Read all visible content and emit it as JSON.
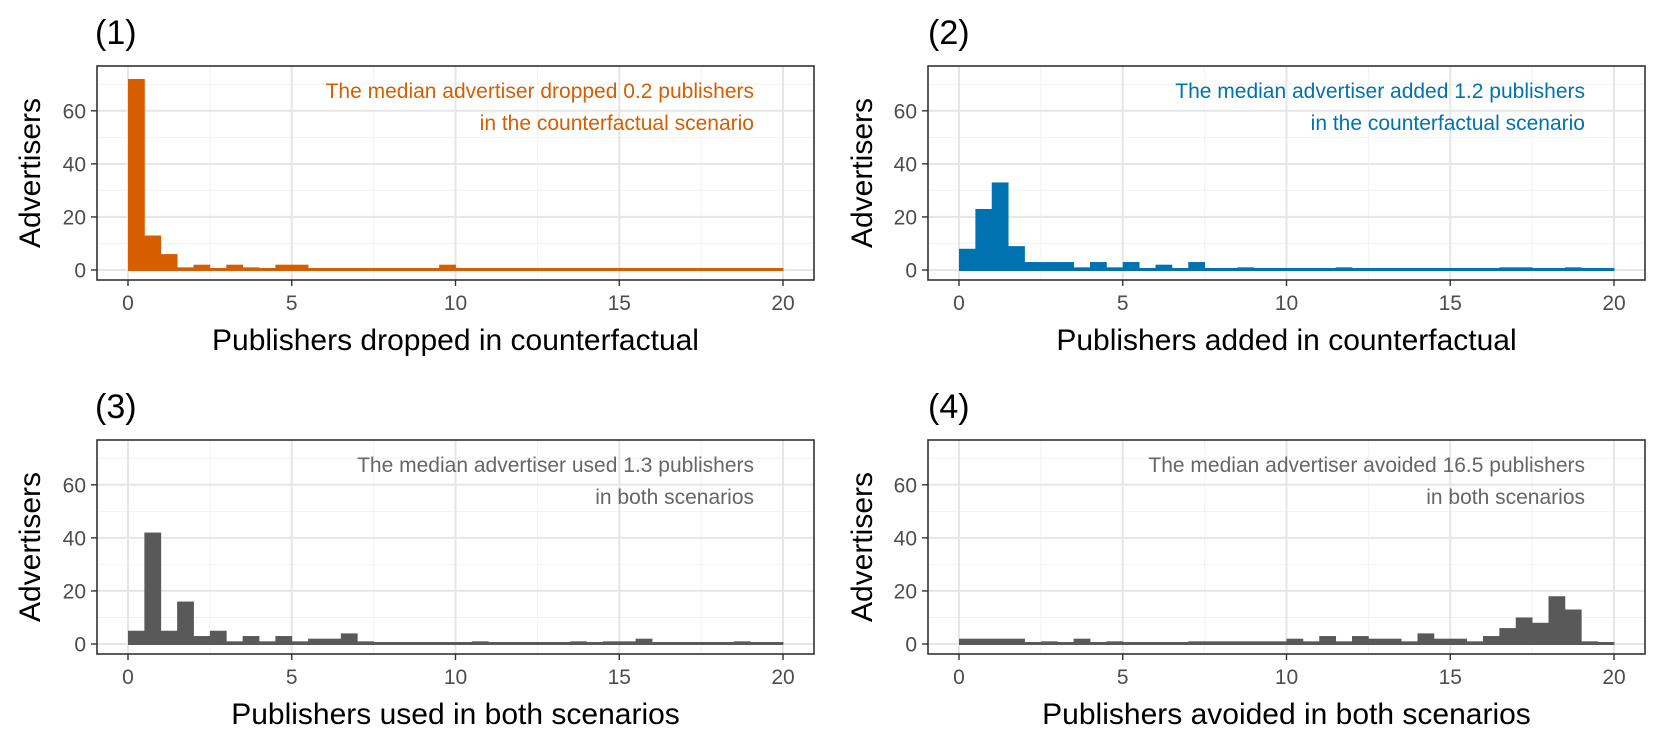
{
  "chart_data": [
    {
      "type": "bar",
      "tag": "(1)",
      "xlabel": "Publishers dropped in counterfactual",
      "ylabel": "Advertisers",
      "annotation": [
        "The median advertiser dropped 0.2 publishers",
        "in the counterfactual scenario"
      ],
      "color": "#D55E00",
      "annotation_color": "#D55E00",
      "bin_width": 0.5,
      "xlim": [
        0,
        20
      ],
      "ylim": [
        0,
        75
      ],
      "x_ticks": [
        0,
        5,
        10,
        15,
        20
      ],
      "y_ticks": [
        0,
        20,
        40,
        60
      ],
      "grid": true,
      "values": [
        72,
        13,
        6,
        1,
        2,
        0,
        2,
        1,
        0,
        2,
        2,
        0,
        0,
        0,
        0,
        0,
        0,
        0,
        0,
        2,
        0,
        0,
        0,
        0,
        0,
        0,
        0,
        0,
        0,
        0,
        0,
        0,
        0,
        0,
        0,
        0,
        0,
        0,
        0,
        0
      ]
    },
    {
      "type": "bar",
      "tag": "(2)",
      "xlabel": "Publishers added in counterfactual",
      "ylabel": "Advertisers",
      "annotation": [
        "The median advertiser added 1.2 publishers",
        "in the counterfactual scenario"
      ],
      "color": "#0072B2",
      "annotation_color": "#0072B2",
      "bin_width": 0.5,
      "xlim": [
        0,
        20
      ],
      "ylim": [
        0,
        75
      ],
      "x_ticks": [
        0,
        5,
        10,
        15,
        20
      ],
      "y_ticks": [
        0,
        20,
        40,
        60
      ],
      "grid": true,
      "values": [
        8,
        23,
        33,
        9,
        3,
        3,
        3,
        1,
        3,
        1,
        3,
        0,
        2,
        0,
        3,
        0,
        0,
        1,
        0,
        0,
        0,
        0,
        0,
        1,
        0,
        0,
        0,
        0,
        0,
        0,
        0,
        0,
        0,
        1,
        1,
        0,
        0,
        1,
        0,
        0
      ]
    },
    {
      "type": "bar",
      "tag": "(3)",
      "xlabel": "Publishers used in both scenarios",
      "ylabel": "Advertisers",
      "annotation": [
        "The median advertiser used 1.3 publishers",
        "in both scenarios"
      ],
      "color": "#595959",
      "annotation_color": "#666666",
      "bin_width": 0.5,
      "xlim": [
        0,
        20
      ],
      "ylim": [
        0,
        75
      ],
      "x_ticks": [
        0,
        5,
        10,
        15,
        20
      ],
      "y_ticks": [
        0,
        20,
        40,
        60
      ],
      "grid": true,
      "values": [
        5,
        42,
        5,
        16,
        3,
        5,
        1,
        3,
        1,
        3,
        1,
        2,
        2,
        4,
        1,
        0,
        0,
        0,
        0,
        0,
        0,
        1,
        0,
        0,
        0,
        0,
        0,
        1,
        0,
        1,
        1,
        2,
        0,
        0,
        0,
        0,
        0,
        1,
        0,
        0
      ]
    },
    {
      "type": "bar",
      "tag": "(4)",
      "xlabel": "Publishers avoided in both scenarios",
      "ylabel": "Advertisers",
      "annotation": [
        "The median advertiser avoided 16.5 publishers",
        "in both scenarios"
      ],
      "color": "#595959",
      "annotation_color": "#666666",
      "bin_width": 0.5,
      "xlim": [
        0,
        20
      ],
      "ylim": [
        0,
        75
      ],
      "x_ticks": [
        0,
        5,
        10,
        15,
        20
      ],
      "y_ticks": [
        0,
        20,
        40,
        60
      ],
      "grid": true,
      "values": [
        2,
        2,
        2,
        2,
        0,
        1,
        0,
        2,
        0,
        1,
        0,
        0,
        0,
        0,
        1,
        1,
        1,
        1,
        1,
        1,
        2,
        1,
        3,
        1,
        3,
        2,
        2,
        1,
        4,
        2,
        2,
        1,
        3,
        6,
        10,
        8,
        18,
        13,
        1,
        0
      ]
    }
  ]
}
